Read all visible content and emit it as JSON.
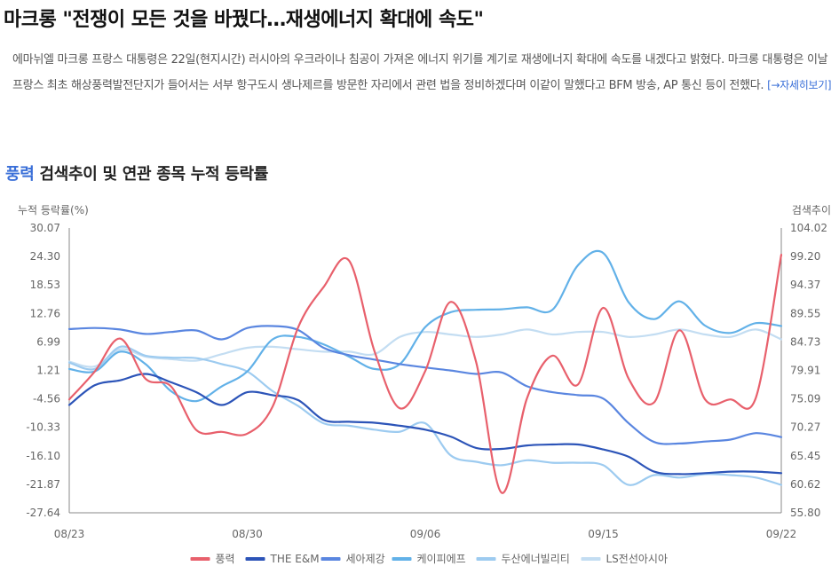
{
  "headline": "마크롱 \"전쟁이 모든 것을 바꿨다…재생에너지 확대에 속도\"",
  "article": {
    "body": "에마뉘엘 마크롱 프랑스 대통령은 22일(현지시간) 러시아의 우크라이나 침공이 가져온 에너지 위기를 계기로 재생에너지 확대에 속도를 내겠다고 밝혔다. 마크롱 대통령은 이날 프랑스 최초 해상풍력발전단지가 들어서는 서부 항구도시 생나제르를 방문한 자리에서 관련 법을 정비하겠다며 이같이 말했다고 BFM 방송, AP 통신 등이 전했다.",
    "more_link": "[→자세히보기]"
  },
  "section": {
    "keyword": "풍력",
    "title_rest": " 검색추이 및 연관 종목 누적 등락률"
  },
  "chart_data": {
    "type": "line",
    "title": "",
    "ylabel_left": "누적 등락률(%)",
    "ylabel_right": "검색추이",
    "x_ticks": [
      "08/23",
      "08/30",
      "09/06",
      "09/15",
      "09/22"
    ],
    "x_tick_index": [
      0,
      7,
      14,
      21,
      28
    ],
    "y_left_ticks": [
      "30.07",
      "24.30",
      "18.53",
      "12.76",
      "6.99",
      "1.21",
      "-4.56",
      "-10.33",
      "-16.10",
      "-21.87",
      "-27.64"
    ],
    "ylim_left": [
      -27.64,
      30.07
    ],
    "y_right_ticks": [
      "104.02",
      "99.20",
      "94.37",
      "89.55",
      "84.73",
      "79.91",
      "75.09",
      "70.27",
      "65.45",
      "60.62",
      "55.80"
    ],
    "ylim_right": [
      55.8,
      104.02
    ],
    "grid": false,
    "legend_position": "bottom",
    "series": [
      {
        "name": "풍력",
        "axis": "right",
        "color": "#e8606c",
        "values": [
          75.0,
          79.7,
          85.3,
          78.5,
          77.2,
          69.8,
          69.5,
          69.2,
          73.8,
          87.2,
          94.0,
          98.5,
          83.2,
          73.5,
          79.8,
          91.5,
          81.3,
          59.2,
          75.2,
          82.4,
          77.5,
          90.5,
          78.5,
          74.5,
          86.7,
          75.0,
          75.0,
          75.3,
          99.5
        ]
      },
      {
        "name": "THE E&M",
        "axis": "left",
        "color": "#2c54b8",
        "values": [
          -5.8,
          -1.8,
          -0.8,
          0.5,
          -1.2,
          -3.2,
          -5.8,
          -3.2,
          -3.8,
          -4.8,
          -8.8,
          -9.2,
          -9.4,
          -10.0,
          -10.8,
          -12.2,
          -14.5,
          -14.7,
          -14.0,
          -13.8,
          -13.8,
          -14.8,
          -16.3,
          -19.3,
          -19.8,
          -19.6,
          -19.3,
          -19.3,
          -19.6
        ]
      },
      {
        "name": "세아제강",
        "axis": "left",
        "color": "#5a86e0",
        "values": [
          9.6,
          9.8,
          9.5,
          8.6,
          9.0,
          9.3,
          7.5,
          9.8,
          10.2,
          9.4,
          5.8,
          4.3,
          3.4,
          2.5,
          1.8,
          1.2,
          0.5,
          0.8,
          -2.0,
          -3.2,
          -3.8,
          -4.5,
          -9.5,
          -13.3,
          -13.6,
          -13.2,
          -12.8,
          -11.5,
          -12.3
        ]
      },
      {
        "name": "케이피에프",
        "axis": "left",
        "color": "#62b1e8",
        "values": [
          1.5,
          1.0,
          5.0,
          2.5,
          -3.0,
          -5.0,
          -2.0,
          1.0,
          7.5,
          8.0,
          6.5,
          4.0,
          1.5,
          2.5,
          10.0,
          13.0,
          13.5,
          13.6,
          14.0,
          13.5,
          22.5,
          25.0,
          15.0,
          11.6,
          15.2,
          10.3,
          8.8,
          10.8,
          10.2
        ]
      },
      {
        "name": "두산에너빌리티",
        "axis": "left",
        "color": "#9dcbf0",
        "values": [
          2.8,
          1.5,
          6.0,
          4.2,
          3.8,
          3.7,
          2.5,
          1.0,
          -3.0,
          -6.0,
          -9.5,
          -10.0,
          -10.8,
          -11.2,
          -9.5,
          -16.0,
          -17.3,
          -18.0,
          -17.0,
          -17.5,
          -17.5,
          -18.0,
          -22.0,
          -20.0,
          -20.5,
          -19.8,
          -20.0,
          -20.5,
          -22.0
        ]
      },
      {
        "name": "LS전선아시아",
        "axis": "left",
        "color": "#c3ddf2",
        "values": [
          3.0,
          2.0,
          5.5,
          4.0,
          3.5,
          3.2,
          4.5,
          5.8,
          6.0,
          5.5,
          5.0,
          5.0,
          4.5,
          8.0,
          9.0,
          8.5,
          8.0,
          8.5,
          9.5,
          8.5,
          9.0,
          9.0,
          8.0,
          8.5,
          9.5,
          8.5,
          8.0,
          9.5,
          7.5
        ]
      }
    ]
  }
}
